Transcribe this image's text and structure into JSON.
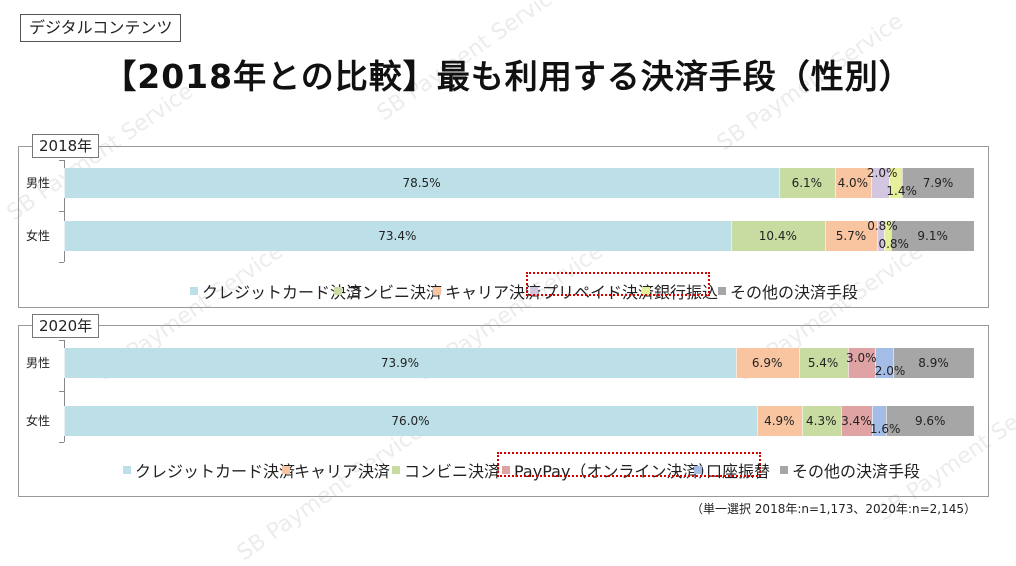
{
  "tag": "デジタルコンテンツ",
  "title": "【2018年との比較】最も利用する決済手段（性別）",
  "watermark": "SB Payment Service",
  "note": "（単一選択 2018年:n=1,173、2020年:n=2,145）",
  "chart_data": [
    {
      "type": "bar",
      "orientation": "horizontal",
      "stacked": true,
      "title": "2018年",
      "categories": [
        "男性",
        "女性"
      ],
      "series": [
        {
          "name": "クレジットカード決済",
          "color": "#bde0e8",
          "values": [
            78.5,
            73.4
          ]
        },
        {
          "name": "コンビニ決済",
          "color": "#c8dca2",
          "values": [
            6.1,
            10.4
          ]
        },
        {
          "name": "キャリア決済",
          "color": "#f8c5a0",
          "values": [
            4.0,
            5.7
          ]
        },
        {
          "name": "プリペイド決済",
          "color": "#d3c6e0",
          "values": [
            2.0,
            0.8
          ]
        },
        {
          "name": "銀行振込",
          "color": "#e6ef9c",
          "values": [
            1.4,
            0.8
          ]
        },
        {
          "name": "その他の決済手段",
          "color": "#a6a6a6",
          "values": [
            7.9,
            9.1
          ]
        }
      ],
      "labels": [
        [
          "78.5%",
          "6.1%",
          "4.0%",
          "2.0%",
          "1.4%",
          "7.9%"
        ],
        [
          "73.4%",
          "10.4%",
          "5.7%",
          "0.8%",
          "0.8%",
          "9.1%"
        ]
      ],
      "legend_placement": "bottom",
      "highlighted_legend": [
        "プリペイド決済",
        "銀行振込"
      ]
    },
    {
      "type": "bar",
      "orientation": "horizontal",
      "stacked": true,
      "title": "2020年",
      "categories": [
        "男性",
        "女性"
      ],
      "series": [
        {
          "name": "クレジットカード決済",
          "color": "#bde0e8",
          "values": [
            73.9,
            76.0
          ]
        },
        {
          "name": "キャリア決済",
          "color": "#f8c5a0",
          "values": [
            6.9,
            4.9
          ]
        },
        {
          "name": "コンビニ決済",
          "color": "#c8dca2",
          "values": [
            5.4,
            4.3
          ]
        },
        {
          "name": "PayPay（オンライン決済）",
          "color": "#e0a3a3",
          "values": [
            3.0,
            3.4
          ]
        },
        {
          "name": "口座振替",
          "color": "#a3bde6",
          "values": [
            2.0,
            1.6
          ]
        },
        {
          "name": "その他の決済手段",
          "color": "#a6a6a6",
          "values": [
            8.9,
            9.6
          ]
        }
      ],
      "labels": [
        [
          "73.9%",
          "6.9%",
          "5.4%",
          "3.0%",
          "2.0%",
          "8.9%"
        ],
        [
          "76.0%",
          "4.9%",
          "4.3%",
          "3.4%",
          "1.6%",
          "9.6%"
        ]
      ],
      "legend_placement": "bottom",
      "highlighted_legend": [
        "PayPay（オンライン決済）",
        "口座振替"
      ]
    }
  ]
}
